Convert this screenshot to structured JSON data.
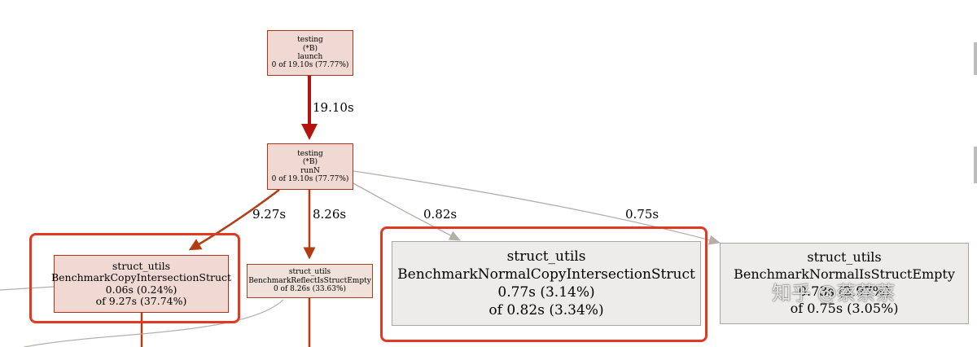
{
  "nodes": {
    "launch": {
      "lines": [
        "testing",
        "(*B)",
        "launch",
        "0 of 19.10s (77.77%)"
      ]
    },
    "runN": {
      "lines": [
        "testing",
        "(*B)",
        "runN",
        "0 of 19.10s (77.77%)"
      ]
    },
    "copy": {
      "lines": [
        "struct_utils",
        "BenchmarkCopyIntersectionStruct",
        "0.06s (0.24%)",
        "of 9.27s (37.74%)"
      ]
    },
    "reflect": {
      "lines": [
        "struct_utils",
        "BenchmarkReflectIsStructEmpty",
        "0 of 8.26s (33.63%)"
      ]
    },
    "normal_copy": {
      "lines": [
        "struct_utils",
        "BenchmarkNormalCopyIntersectionStruct",
        "0.77s (3.14%)",
        "of 0.82s (3.34%)"
      ]
    },
    "normal_empty": {
      "lines": [
        "struct_utils",
        "BenchmarkNormalIsStructEmpty",
        "0.73s (2.97%)",
        "of 0.75s (3.05%)"
      ]
    }
  },
  "edges": {
    "launch_runN": "19.10s",
    "runN_copy": "9.27s",
    "runN_reflect": "8.26s",
    "runN_normal_copy": "0.82s",
    "runN_normal_empty": "0.75s"
  },
  "watermark": "知乎 @蔡蔡蔡",
  "colors": {
    "hot_edge": "#b2140f",
    "warm_edge": "#b23c14",
    "cold_edge": "#b4b0a8",
    "highlight": "#e03a24"
  }
}
